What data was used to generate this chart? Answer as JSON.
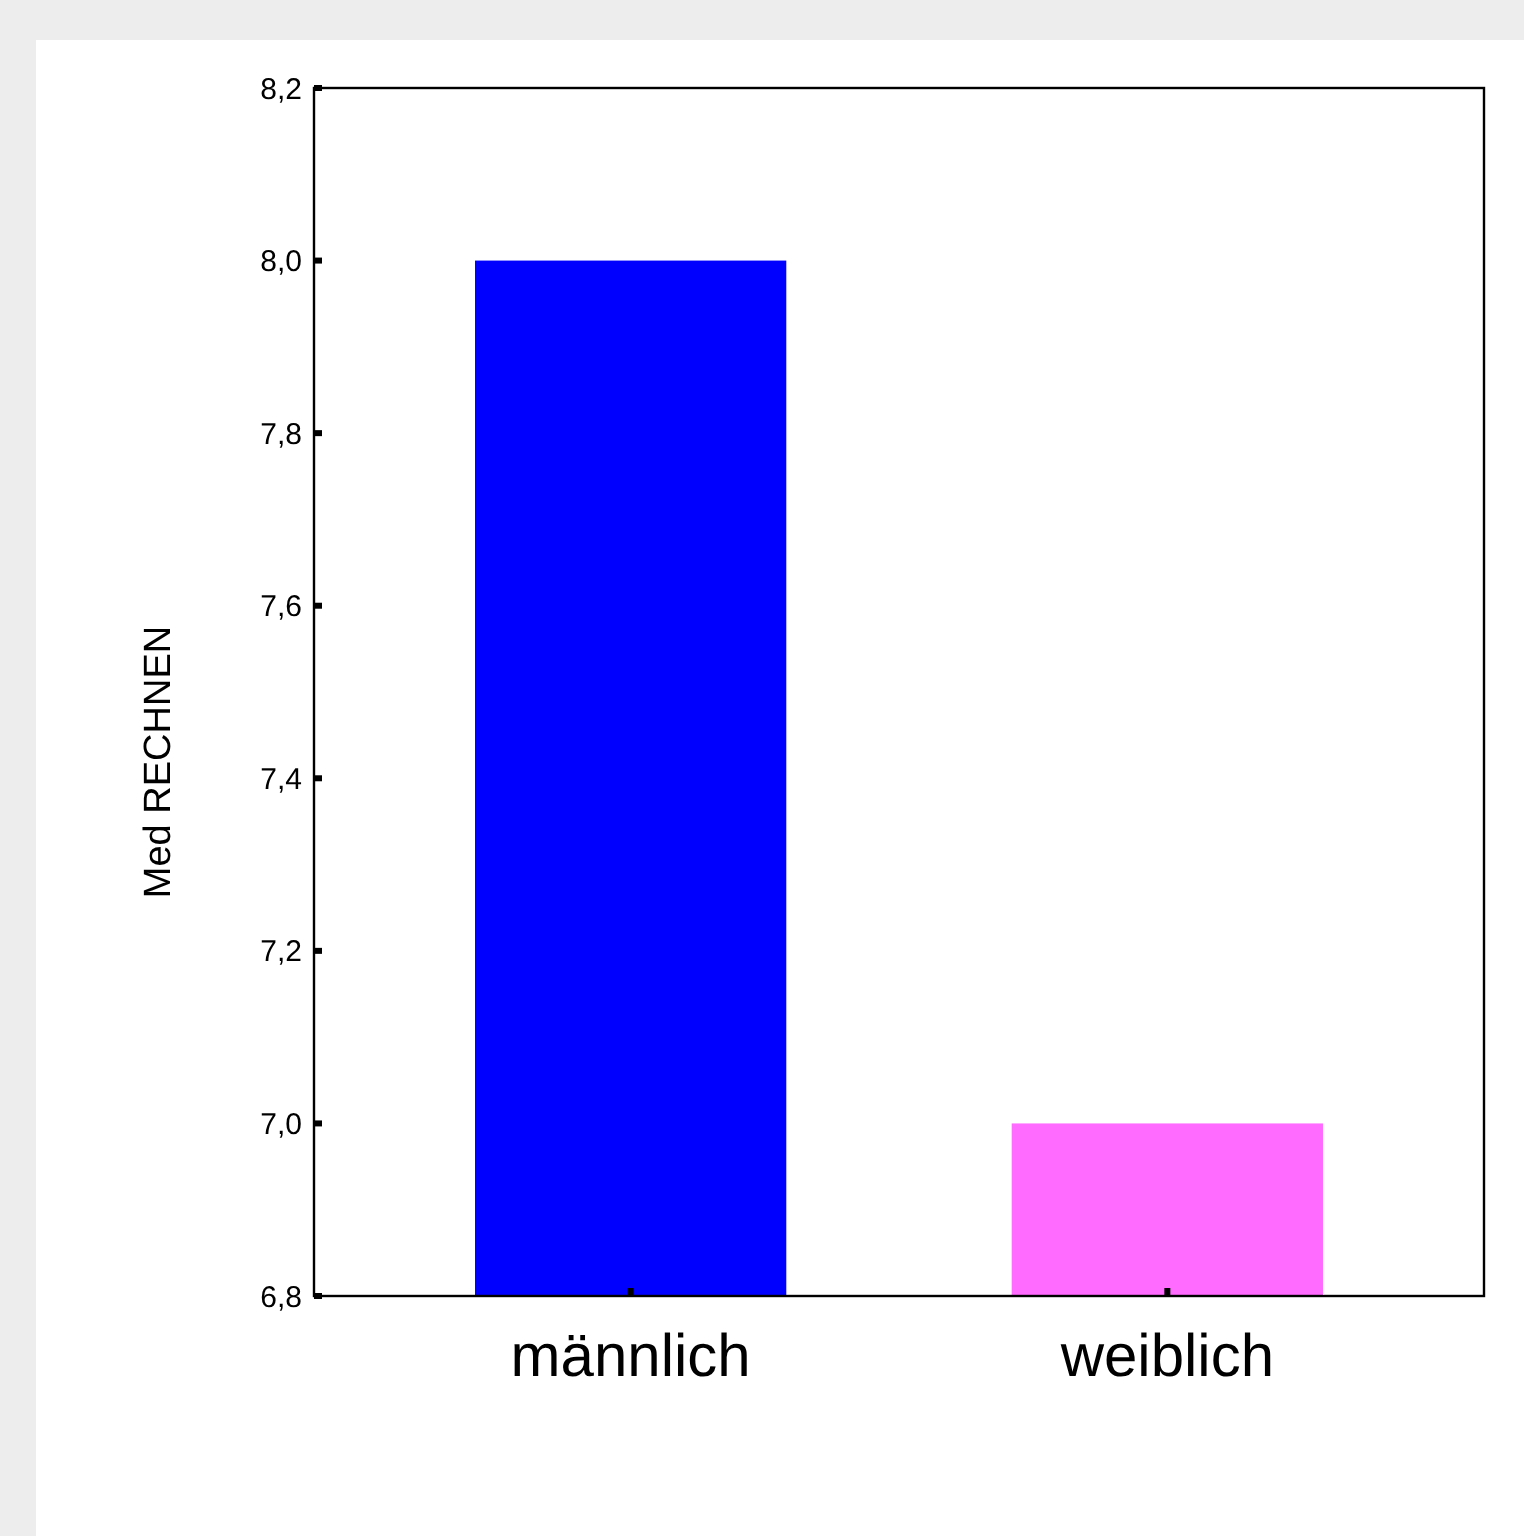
{
  "chart_data": {
    "type": "bar",
    "ylabel": "Med RECHNEN",
    "categories": [
      "männlich",
      "weiblich"
    ],
    "values": [
      8.0,
      7.0
    ],
    "colors": [
      "#0000ff",
      "#ff6bff"
    ],
    "ylim": [
      6.8,
      8.2
    ],
    "yticks": [
      {
        "value": 6.8,
        "label": "6,8"
      },
      {
        "value": 7.0,
        "label": "7,0"
      },
      {
        "value": 7.2,
        "label": "7,2"
      },
      {
        "value": 7.4,
        "label": "7,4"
      },
      {
        "value": 7.6,
        "label": "7,6"
      },
      {
        "value": 7.8,
        "label": "7,8"
      },
      {
        "value": 8.0,
        "label": "8,0"
      },
      {
        "value": 8.2,
        "label": "8,2"
      }
    ]
  }
}
